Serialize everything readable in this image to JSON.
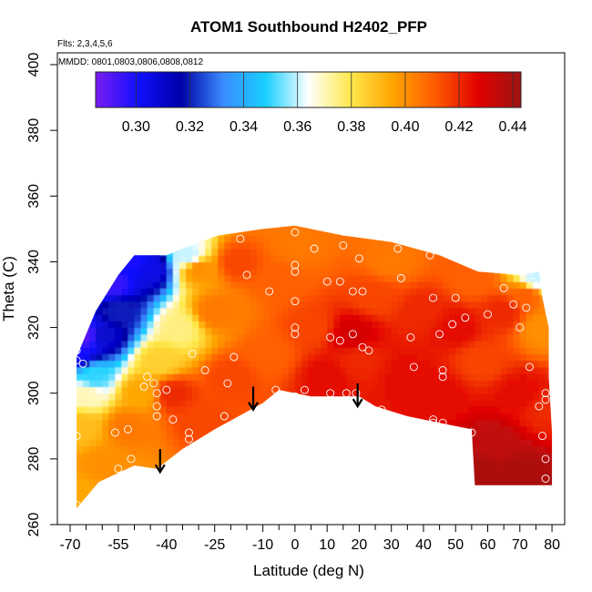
{
  "chart_data": {
    "type": "heatmap",
    "title": "ATOM1 Southbound H2402_PFP",
    "flights_label": "Flts: 2,3,4,5,6",
    "dates_label": "MMDD: 0801,0803,0806,0808,0812",
    "xlabel": "Latitude (deg N)",
    "ylabel": "Theta (C)",
    "xlim": [
      -70,
      80
    ],
    "ylim": [
      260,
      400
    ],
    "x_ticks": [
      -70,
      -55,
      -40,
      -25,
      -10,
      0,
      10,
      20,
      30,
      40,
      50,
      60,
      70,
      80
    ],
    "x_tick_labels": [
      "-70",
      "-55",
      "-40",
      "-25",
      "-10",
      "0",
      "10",
      "20",
      "30",
      "40",
      "50",
      "60",
      "70",
      "80"
    ],
    "y_ticks": [
      260,
      280,
      300,
      320,
      340,
      360,
      380,
      400
    ],
    "y_tick_labels": [
      "260",
      "280",
      "300",
      "320",
      "340",
      "360",
      "380",
      "400"
    ],
    "colorbar": {
      "range": [
        0.285,
        0.443
      ],
      "ticks": [
        0.3,
        0.32,
        0.34,
        0.36,
        0.38,
        0.4,
        0.42,
        0.44
      ],
      "tick_labels": [
        "0.30",
        "0.32",
        "0.34",
        "0.36",
        "0.38",
        "0.40",
        "0.42",
        "0.44"
      ],
      "colors": [
        "#7a1cf0",
        "#1010ff",
        "#0000a8",
        "#3a8cff",
        "#18d0ff",
        "#ffffff",
        "#ffe84a",
        "#ffa400",
        "#ff5a00",
        "#e00000",
        "#9e1414"
      ]
    },
    "envelope": {
      "upper": [
        [
          -68,
          311
        ],
        [
          -62,
          325
        ],
        [
          -55,
          336
        ],
        [
          -50,
          342
        ],
        [
          -40,
          342
        ],
        [
          -35,
          344
        ],
        [
          -24,
          348
        ],
        [
          -10,
          350
        ],
        [
          0,
          351
        ],
        [
          15,
          348
        ],
        [
          30,
          346
        ],
        [
          45,
          342
        ],
        [
          57,
          337
        ],
        [
          70,
          336
        ],
        [
          76,
          337
        ],
        [
          77,
          329
        ],
        [
          79,
          320
        ],
        [
          79,
          305
        ],
        [
          80,
          288
        ]
      ],
      "lower": [
        [
          -68,
          265
        ],
        [
          -61,
          273
        ],
        [
          -50,
          278
        ],
        [
          -43,
          277
        ],
        [
          -35,
          283
        ],
        [
          -25,
          289
        ],
        [
          -10,
          297
        ],
        [
          -5,
          301
        ],
        [
          5,
          299
        ],
        [
          10,
          299
        ],
        [
          20,
          299
        ],
        [
          25,
          296
        ],
        [
          35,
          293
        ],
        [
          45,
          291
        ],
        [
          55,
          289
        ],
        [
          56,
          272
        ],
        [
          80,
          272
        ]
      ]
    },
    "anchors": [
      {
        "lat": -68,
        "theta": 312,
        "value": 0.3
      },
      {
        "lat": -65,
        "theta": 318,
        "value": 0.29
      },
      {
        "lat": -57,
        "theta": 333,
        "value": 0.295
      },
      {
        "lat": -50,
        "theta": 340,
        "value": 0.3
      },
      {
        "lat": -45,
        "theta": 338,
        "value": 0.305
      },
      {
        "lat": -60,
        "theta": 318,
        "value": 0.31
      },
      {
        "lat": -55,
        "theta": 325,
        "value": 0.32
      },
      {
        "lat": -63,
        "theta": 305,
        "value": 0.35
      },
      {
        "lat": -65,
        "theta": 300,
        "value": 0.37
      },
      {
        "lat": -67,
        "theta": 290,
        "value": 0.39
      },
      {
        "lat": -67,
        "theta": 270,
        "value": 0.395
      },
      {
        "lat": -60,
        "theta": 278,
        "value": 0.4
      },
      {
        "lat": -52,
        "theta": 290,
        "value": 0.405
      },
      {
        "lat": -48,
        "theta": 300,
        "value": 0.395
      },
      {
        "lat": -42,
        "theta": 310,
        "value": 0.385
      },
      {
        "lat": -36,
        "theta": 320,
        "value": 0.375
      },
      {
        "lat": -30,
        "theta": 338,
        "value": 0.4
      },
      {
        "lat": -33,
        "theta": 342,
        "value": 0.36
      },
      {
        "lat": -38,
        "theta": 300,
        "value": 0.42
      },
      {
        "lat": -30,
        "theta": 292,
        "value": 0.415
      },
      {
        "lat": -20,
        "theta": 305,
        "value": 0.415
      },
      {
        "lat": -25,
        "theta": 325,
        "value": 0.405
      },
      {
        "lat": -18,
        "theta": 340,
        "value": 0.415
      },
      {
        "lat": -5,
        "theta": 335,
        "value": 0.41
      },
      {
        "lat": 0,
        "theta": 345,
        "value": 0.405
      },
      {
        "lat": 5,
        "theta": 320,
        "value": 0.415
      },
      {
        "lat": -8,
        "theta": 312,
        "value": 0.41
      },
      {
        "lat": 10,
        "theta": 305,
        "value": 0.425
      },
      {
        "lat": 18,
        "theta": 318,
        "value": 0.43
      },
      {
        "lat": 20,
        "theta": 310,
        "value": 0.42
      },
      {
        "lat": 25,
        "theta": 330,
        "value": 0.415
      },
      {
        "lat": 30,
        "theta": 340,
        "value": 0.405
      },
      {
        "lat": 35,
        "theta": 305,
        "value": 0.425
      },
      {
        "lat": 40,
        "theta": 325,
        "value": 0.42
      },
      {
        "lat": 45,
        "theta": 300,
        "value": 0.425
      },
      {
        "lat": 50,
        "theta": 320,
        "value": 0.425
      },
      {
        "lat": 55,
        "theta": 335,
        "value": 0.41
      },
      {
        "lat": 58,
        "theta": 310,
        "value": 0.415
      },
      {
        "lat": 65,
        "theta": 325,
        "value": 0.42
      },
      {
        "lat": 72,
        "theta": 330,
        "value": 0.41
      },
      {
        "lat": 75,
        "theta": 335,
        "value": 0.36
      },
      {
        "lat": 77,
        "theta": 320,
        "value": 0.4
      },
      {
        "lat": 70,
        "theta": 300,
        "value": 0.425
      },
      {
        "lat": 78,
        "theta": 295,
        "value": 0.42
      },
      {
        "lat": 62,
        "theta": 285,
        "value": 0.435
      },
      {
        "lat": 70,
        "theta": 275,
        "value": 0.44
      },
      {
        "lat": 58,
        "theta": 276,
        "value": 0.44
      }
    ],
    "sample_points": [
      [
        -68,
        313
      ],
      [
        -68,
        310
      ],
      [
        -66,
        309
      ],
      [
        -68,
        287
      ],
      [
        -68,
        266
      ],
      [
        -56,
        288
      ],
      [
        -52,
        289
      ],
      [
        -55,
        277
      ],
      [
        -51,
        280
      ],
      [
        -47,
        302
      ],
      [
        -46,
        305
      ],
      [
        -44,
        303
      ],
      [
        -43,
        300
      ],
      [
        -43,
        296
      ],
      [
        -43,
        293
      ],
      [
        -40,
        301
      ],
      [
        -38,
        292
      ],
      [
        -32,
        312
      ],
      [
        -33,
        286
      ],
      [
        -33,
        288
      ],
      [
        -28,
        307
      ],
      [
        -22,
        293
      ],
      [
        -19,
        311
      ],
      [
        -21,
        303
      ],
      [
        -15,
        336
      ],
      [
        -17,
        347
      ],
      [
        -8,
        331
      ],
      [
        -6,
        301
      ],
      [
        0,
        349
      ],
      [
        0,
        339
      ],
      [
        0,
        337
      ],
      [
        0,
        328
      ],
      [
        0,
        320
      ],
      [
        0,
        318
      ],
      [
        0,
        299
      ],
      [
        3,
        301
      ],
      [
        6,
        344
      ],
      [
        10,
        334
      ],
      [
        11,
        300
      ],
      [
        11,
        317
      ],
      [
        14,
        334
      ],
      [
        14,
        316
      ],
      [
        15,
        345
      ],
      [
        16,
        300
      ],
      [
        18,
        331
      ],
      [
        18,
        318
      ],
      [
        19,
        300
      ],
      [
        20,
        341
      ],
      [
        21,
        331
      ],
      [
        21,
        314
      ],
      [
        23,
        313
      ],
      [
        27,
        295
      ],
      [
        32,
        344
      ],
      [
        33,
        335
      ],
      [
        36,
        317
      ],
      [
        37,
        308
      ],
      [
        42,
        342
      ],
      [
        43,
        329
      ],
      [
        43,
        292
      ],
      [
        43,
        291
      ],
      [
        45,
        318
      ],
      [
        46,
        305
      ],
      [
        46,
        307
      ],
      [
        46,
        291
      ],
      [
        49,
        321
      ],
      [
        50,
        329
      ],
      [
        53,
        323
      ],
      [
        55,
        288
      ],
      [
        60,
        324
      ],
      [
        65,
        332
      ],
      [
        68,
        327
      ],
      [
        70,
        320
      ],
      [
        72,
        326
      ],
      [
        73,
        308
      ],
      [
        76,
        296
      ],
      [
        77,
        287
      ],
      [
        78,
        298
      ],
      [
        78,
        280
      ],
      [
        78,
        274
      ],
      [
        74,
        334
      ],
      [
        78,
        300
      ]
    ],
    "annotations": [
      {
        "type": "arrow",
        "lat": -42,
        "theta_from": 283,
        "theta_to": 276
      },
      {
        "type": "arrow",
        "lat": -13,
        "theta_from": 302,
        "theta_to": 295
      },
      {
        "type": "arrow",
        "lat": 19.5,
        "theta_from": 303,
        "theta_to": 296
      }
    ]
  }
}
